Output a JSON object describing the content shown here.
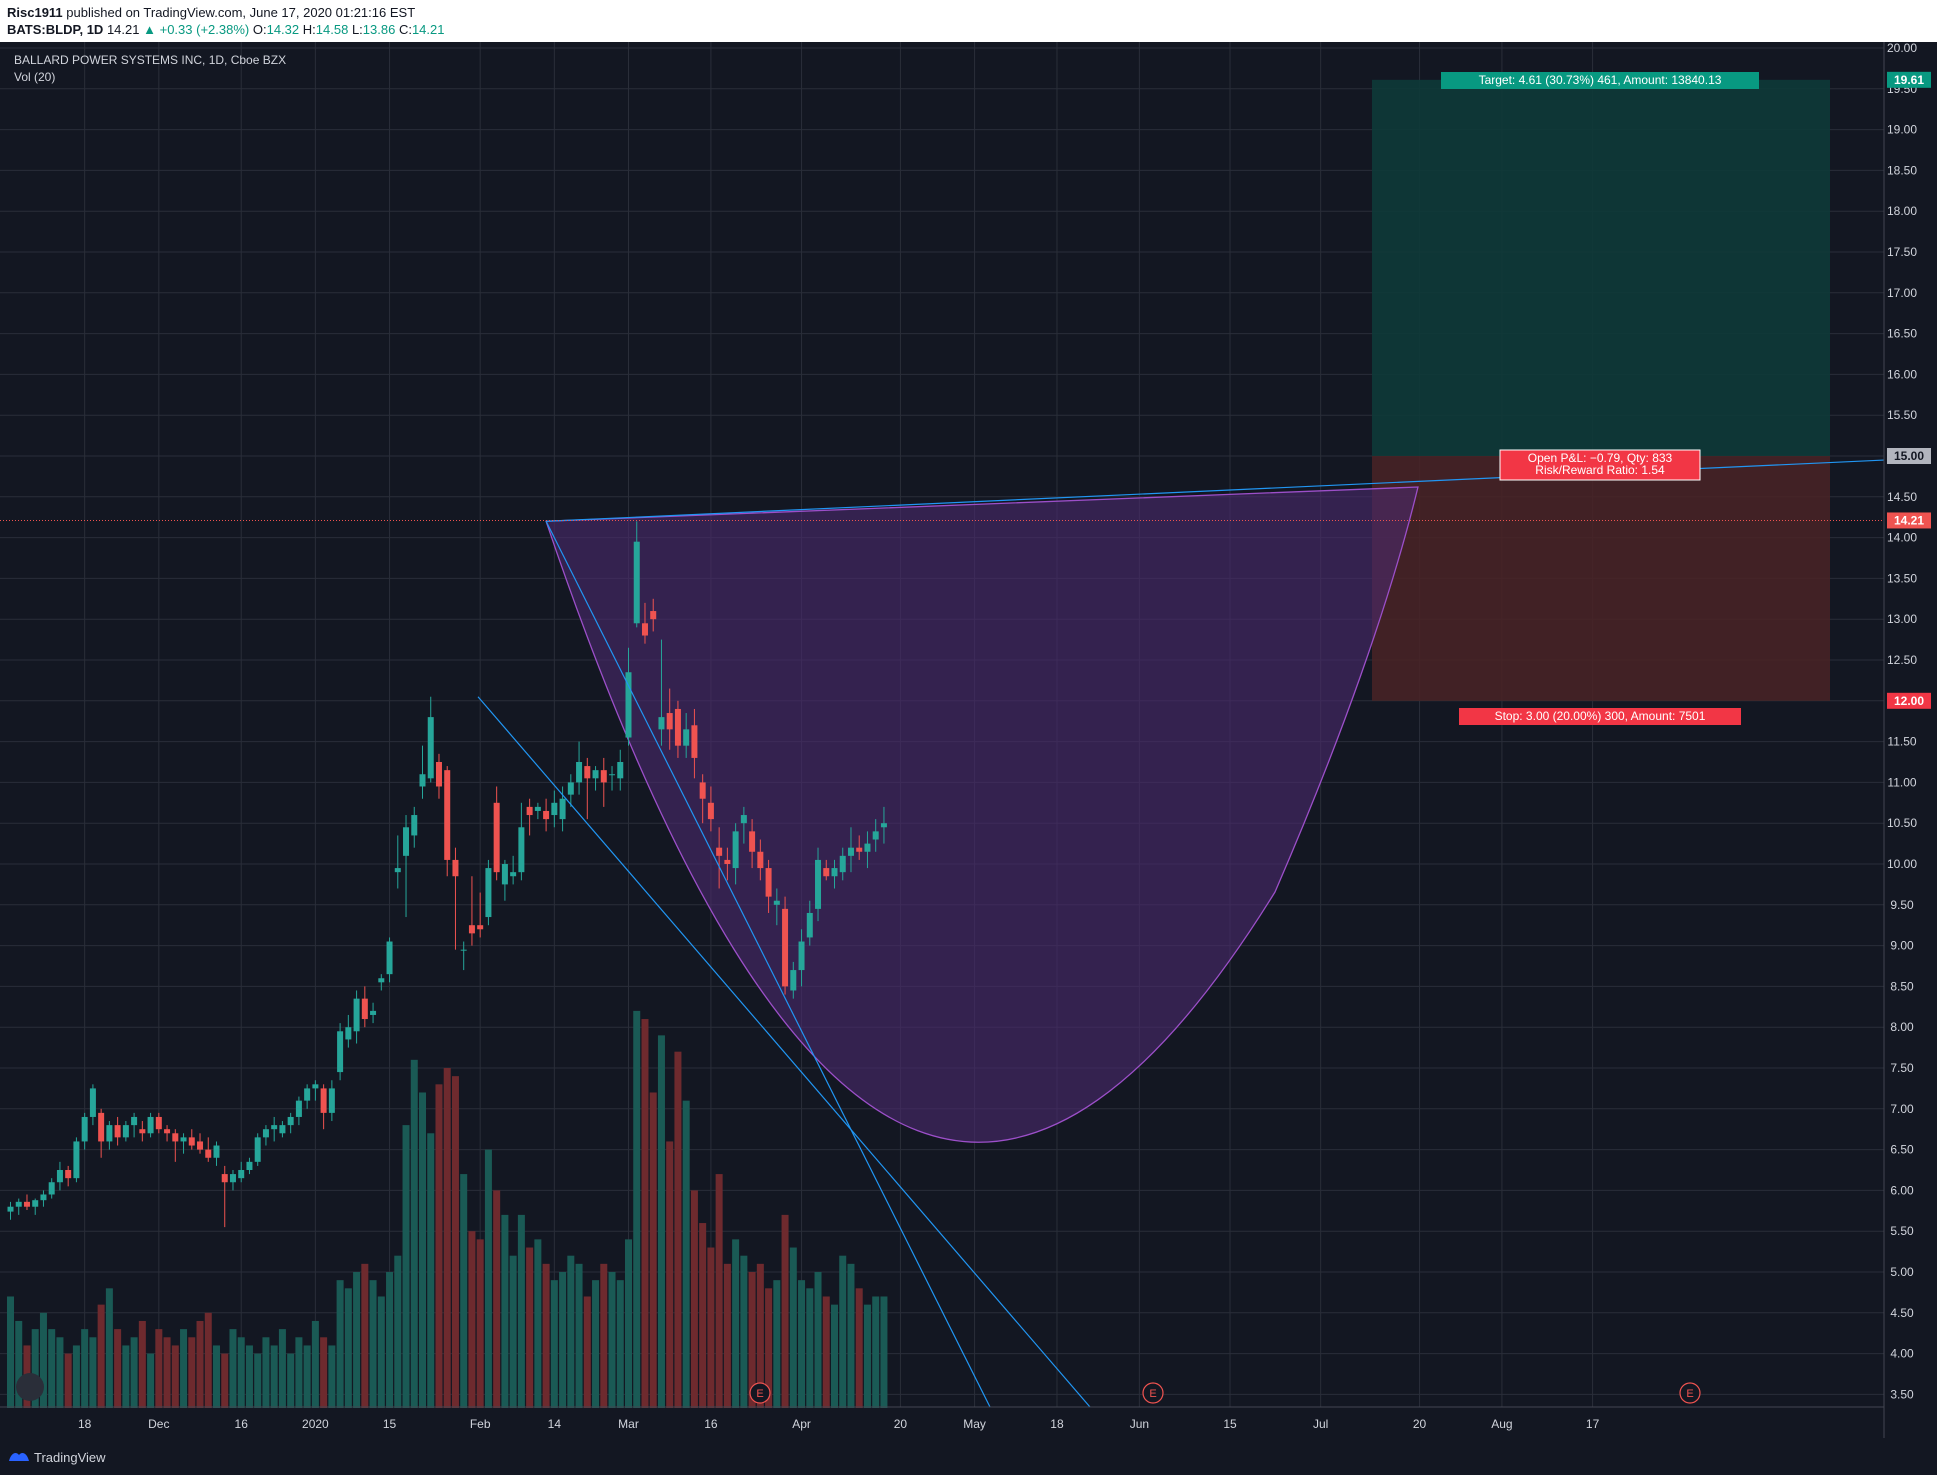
{
  "header": {
    "author": "Risc1911",
    "published_text": "published on TradingView.com, June 17, 2020 01:21:16 EST",
    "symbol": "BATS:BLDP, 1D",
    "last": "14.21",
    "change": "+0.33 (+2.38%)",
    "o_label": "O:",
    "o": "14.32",
    "h_label": "H:",
    "h": "14.58",
    "l_label": "L:",
    "l": "13.86",
    "c_label": "C:",
    "c": "14.21"
  },
  "footer": {
    "brand": "TradingView"
  },
  "chart_data": {
    "type": "candlestick",
    "title": "BALLARD POWER SYSTEMS INC, 1D, Cboe BZX",
    "volume_label": "Vol (20)",
    "grid": true,
    "y_range": [
      3.35,
      20.15
    ],
    "y_ticks": [
      "3.50",
      "4.00",
      "4.50",
      "5.00",
      "5.50",
      "6.00",
      "6.50",
      "7.00",
      "7.50",
      "8.00",
      "8.50",
      "9.00",
      "9.50",
      "10.00",
      "10.50",
      "11.00",
      "11.50",
      "12.00",
      "12.50",
      "13.00",
      "13.50",
      "14.00",
      "14.50",
      "15.00",
      "15.50",
      "16.00",
      "16.50",
      "17.00",
      "17.50",
      "18.00",
      "18.50",
      "19.00",
      "19.50",
      "20.00"
    ],
    "x_ticks": [
      {
        "label": "18",
        "bar": 9
      },
      {
        "label": "Dec",
        "bar": 18
      },
      {
        "label": "16",
        "bar": 28
      },
      {
        "label": "2020",
        "bar": 37
      },
      {
        "label": "15",
        "bar": 46
      },
      {
        "label": "Feb",
        "bar": 57
      },
      {
        "label": "14",
        "bar": 66
      },
      {
        "label": "Mar",
        "bar": 75
      },
      {
        "label": "16",
        "bar": 85
      },
      {
        "label": "Apr",
        "bar": 96
      },
      {
        "label": "20",
        "bar": 108
      },
      {
        "label": "May",
        "bar": 117
      },
      {
        "label": "18",
        "bar": 127
      },
      {
        "label": "Jun",
        "bar": 137
      },
      {
        "label": "15",
        "bar": 148
      },
      {
        "label": "Jul",
        "bar": 159
      },
      {
        "label": "20",
        "bar": 171
      },
      {
        "label": "Aug",
        "bar": 181
      },
      {
        "label": "17",
        "bar": 192
      }
    ],
    "ohlc": [
      [
        5.74,
        5.86,
        5.64,
        5.8
      ],
      [
        5.8,
        5.9,
        5.7,
        5.86
      ],
      [
        5.86,
        5.95,
        5.76,
        5.8
      ],
      [
        5.8,
        5.9,
        5.7,
        5.88
      ],
      [
        5.88,
        6.0,
        5.8,
        5.95
      ],
      [
        5.95,
        6.15,
        5.9,
        6.1
      ],
      [
        6.1,
        6.35,
        6.0,
        6.25
      ],
      [
        6.25,
        6.3,
        6.05,
        6.15
      ],
      [
        6.15,
        6.65,
        6.1,
        6.6
      ],
      [
        6.6,
        6.95,
        6.5,
        6.9
      ],
      [
        6.9,
        7.3,
        6.8,
        7.25
      ],
      [
        6.95,
        7.0,
        6.4,
        6.6
      ],
      [
        6.6,
        6.85,
        6.5,
        6.8
      ],
      [
        6.8,
        6.9,
        6.55,
        6.65
      ],
      [
        6.65,
        6.85,
        6.6,
        6.8
      ],
      [
        6.8,
        6.95,
        6.65,
        6.9
      ],
      [
        6.75,
        6.85,
        6.6,
        6.7
      ],
      [
        6.7,
        6.95,
        6.65,
        6.9
      ],
      [
        6.9,
        6.95,
        6.7,
        6.75
      ],
      [
        6.75,
        6.8,
        6.6,
        6.7
      ],
      [
        6.7,
        6.75,
        6.35,
        6.6
      ],
      [
        6.6,
        6.7,
        6.45,
        6.65
      ],
      [
        6.65,
        6.75,
        6.5,
        6.55
      ],
      [
        6.6,
        6.7,
        6.45,
        6.5
      ],
      [
        6.5,
        6.65,
        6.35,
        6.4
      ],
      [
        6.4,
        6.6,
        6.3,
        6.55
      ],
      [
        6.2,
        6.3,
        5.55,
        6.1
      ],
      [
        6.1,
        6.25,
        6.0,
        6.2
      ],
      [
        6.15,
        6.35,
        6.1,
        6.25
      ],
      [
        6.25,
        6.4,
        6.2,
        6.35
      ],
      [
        6.35,
        6.7,
        6.3,
        6.65
      ],
      [
        6.65,
        6.8,
        6.55,
        6.75
      ],
      [
        6.75,
        6.9,
        6.6,
        6.8
      ],
      [
        6.7,
        6.85,
        6.65,
        6.8
      ],
      [
        6.8,
        6.95,
        6.7,
        6.9
      ],
      [
        6.9,
        7.15,
        6.8,
        7.1
      ],
      [
        7.1,
        7.3,
        7.0,
        7.25
      ],
      [
        7.25,
        7.35,
        7.1,
        7.3
      ],
      [
        7.25,
        7.3,
        6.75,
        6.95
      ],
      [
        6.95,
        7.35,
        6.85,
        7.25
      ],
      [
        7.45,
        8.05,
        7.35,
        7.95
      ],
      [
        7.85,
        8.15,
        7.75,
        8.0
      ],
      [
        7.95,
        8.45,
        7.8,
        8.35
      ],
      [
        8.35,
        8.5,
        8.0,
        8.1
      ],
      [
        8.15,
        8.3,
        8.05,
        8.2
      ],
      [
        8.55,
        8.65,
        8.45,
        8.6
      ],
      [
        8.65,
        9.1,
        8.55,
        9.05
      ],
      [
        9.9,
        10.35,
        9.7,
        9.95
      ],
      [
        10.1,
        10.6,
        9.35,
        10.45
      ],
      [
        10.35,
        10.7,
        10.2,
        10.6
      ],
      [
        10.95,
        11.45,
        10.8,
        11.1
      ],
      [
        11.05,
        12.05,
        11.0,
        11.8
      ],
      [
        11.25,
        11.35,
        10.8,
        10.95
      ],
      [
        11.15,
        11.2,
        9.85,
        10.05
      ],
      [
        10.05,
        10.2,
        8.95,
        9.85
      ],
      [
        8.95,
        9.05,
        8.7,
        8.95
      ],
      [
        9.25,
        9.85,
        9.0,
        9.15
      ],
      [
        9.25,
        9.65,
        9.1,
        9.2
      ],
      [
        9.35,
        10.05,
        9.25,
        9.95
      ],
      [
        10.75,
        10.95,
        9.8,
        9.9
      ],
      [
        9.75,
        10.05,
        9.55,
        10.0
      ],
      [
        9.85,
        10.1,
        9.75,
        9.9
      ],
      [
        9.9,
        10.75,
        9.8,
        10.45
      ],
      [
        10.7,
        10.8,
        10.35,
        10.6
      ],
      [
        10.65,
        10.75,
        10.55,
        10.7
      ],
      [
        10.65,
        10.8,
        10.4,
        10.55
      ],
      [
        10.6,
        10.9,
        10.45,
        10.75
      ],
      [
        10.55,
        10.95,
        10.4,
        10.8
      ],
      [
        10.85,
        11.1,
        10.7,
        11.0
      ],
      [
        11.0,
        11.5,
        10.85,
        11.25
      ],
      [
        11.2,
        11.3,
        10.55,
        11.05
      ],
      [
        11.05,
        11.2,
        10.9,
        11.15
      ],
      [
        11.15,
        11.3,
        10.7,
        11.0
      ],
      [
        11.1,
        11.2,
        10.9,
        11.1
      ],
      [
        11.05,
        11.4,
        10.9,
        11.25
      ],
      [
        11.55,
        12.65,
        11.45,
        12.35
      ],
      [
        12.95,
        14.2,
        12.9,
        13.95
      ],
      [
        12.95,
        13.2,
        12.7,
        12.8
      ],
      [
        13.1,
        13.25,
        12.85,
        13.0
      ],
      [
        11.65,
        12.75,
        11.45,
        11.8
      ],
      [
        11.85,
        12.15,
        11.4,
        11.65
      ],
      [
        11.9,
        12.0,
        11.3,
        11.45
      ],
      [
        11.45,
        11.85,
        11.3,
        11.65
      ],
      [
        11.7,
        11.9,
        11.05,
        11.3
      ],
      [
        11.0,
        11.1,
        10.5,
        10.8
      ],
      [
        10.75,
        10.95,
        10.4,
        10.55
      ],
      [
        10.2,
        10.45,
        9.7,
        10.1
      ],
      [
        10.05,
        10.2,
        9.8,
        10.0
      ],
      [
        9.95,
        10.5,
        9.75,
        10.4
      ],
      [
        10.5,
        10.7,
        10.25,
        10.6
      ],
      [
        10.4,
        10.55,
        9.95,
        10.15
      ],
      [
        10.15,
        10.3,
        9.8,
        9.95
      ],
      [
        9.95,
        10.05,
        9.4,
        9.6
      ],
      [
        9.5,
        9.7,
        9.25,
        9.55
      ],
      [
        9.45,
        9.6,
        8.4,
        8.5
      ],
      [
        8.45,
        8.8,
        8.35,
        8.7
      ],
      [
        8.7,
        9.2,
        8.5,
        9.05
      ],
      [
        9.1,
        9.55,
        9.0,
        9.4
      ],
      [
        9.45,
        10.2,
        9.3,
        10.05
      ],
      [
        9.95,
        10.05,
        9.8,
        9.85
      ],
      [
        9.85,
        10.05,
        9.7,
        9.95
      ],
      [
        9.9,
        10.2,
        9.8,
        10.1
      ],
      [
        10.1,
        10.45,
        9.9,
        10.2
      ],
      [
        10.2,
        10.35,
        10.05,
        10.15
      ],
      [
        10.15,
        10.4,
        9.95,
        10.25
      ],
      [
        10.3,
        10.55,
        10.15,
        10.4
      ],
      [
        10.45,
        10.7,
        10.25,
        10.5
      ]
    ],
    "volume": [
      4.7,
      4.4,
      4.1,
      4.3,
      4.5,
      4.3,
      4.2,
      4.0,
      4.1,
      4.3,
      4.2,
      4.6,
      4.8,
      4.3,
      4.1,
      4.2,
      4.4,
      4.0,
      4.3,
      4.2,
      4.1,
      4.3,
      4.2,
      4.4,
      4.5,
      4.1,
      4.0,
      4.3,
      4.2,
      4.1,
      4.0,
      4.2,
      4.1,
      4.3,
      4.0,
      4.2,
      4.1,
      4.4,
      4.2,
      4.1,
      4.9,
      4.8,
      5.0,
      5.1,
      4.9,
      4.7,
      5.0,
      5.2,
      6.8,
      7.6,
      7.2,
      6.7,
      7.3,
      7.5,
      7.4,
      6.2,
      5.5,
      5.4,
      6.5,
      6.0,
      5.7,
      5.2,
      5.7,
      5.3,
      5.4,
      5.1,
      4.9,
      5.0,
      5.2,
      5.1,
      4.7,
      4.9,
      5.1,
      5.0,
      4.9,
      5.4,
      8.2,
      8.1,
      7.2,
      7.9,
      6.6,
      7.7,
      7.1,
      6.0,
      5.6,
      5.3,
      6.2,
      5.1,
      5.4,
      5.2,
      5.0,
      5.1,
      4.8,
      4.9,
      5.7,
      5.3,
      4.9,
      4.8,
      5.0,
      4.7,
      4.6,
      5.2,
      5.1,
      4.8,
      4.6,
      4.7,
      4.7
    ],
    "drawings": {
      "current_price": "14.21",
      "target_price": "19.61",
      "entry_price": "15.00",
      "stop_price": "12.00",
      "target_label": "Target: 4.61 (30.73%) 461, Amount: 13840.13",
      "pnl_label_1": "Open P&L: −0.79, Qty: 833",
      "pnl_label_2": "Risk/Reward Ratio: 1.54",
      "stop_label": "Stop: 3.00 (20.00%) 300, Amount: 7501",
      "earnings_marker": "E"
    }
  }
}
